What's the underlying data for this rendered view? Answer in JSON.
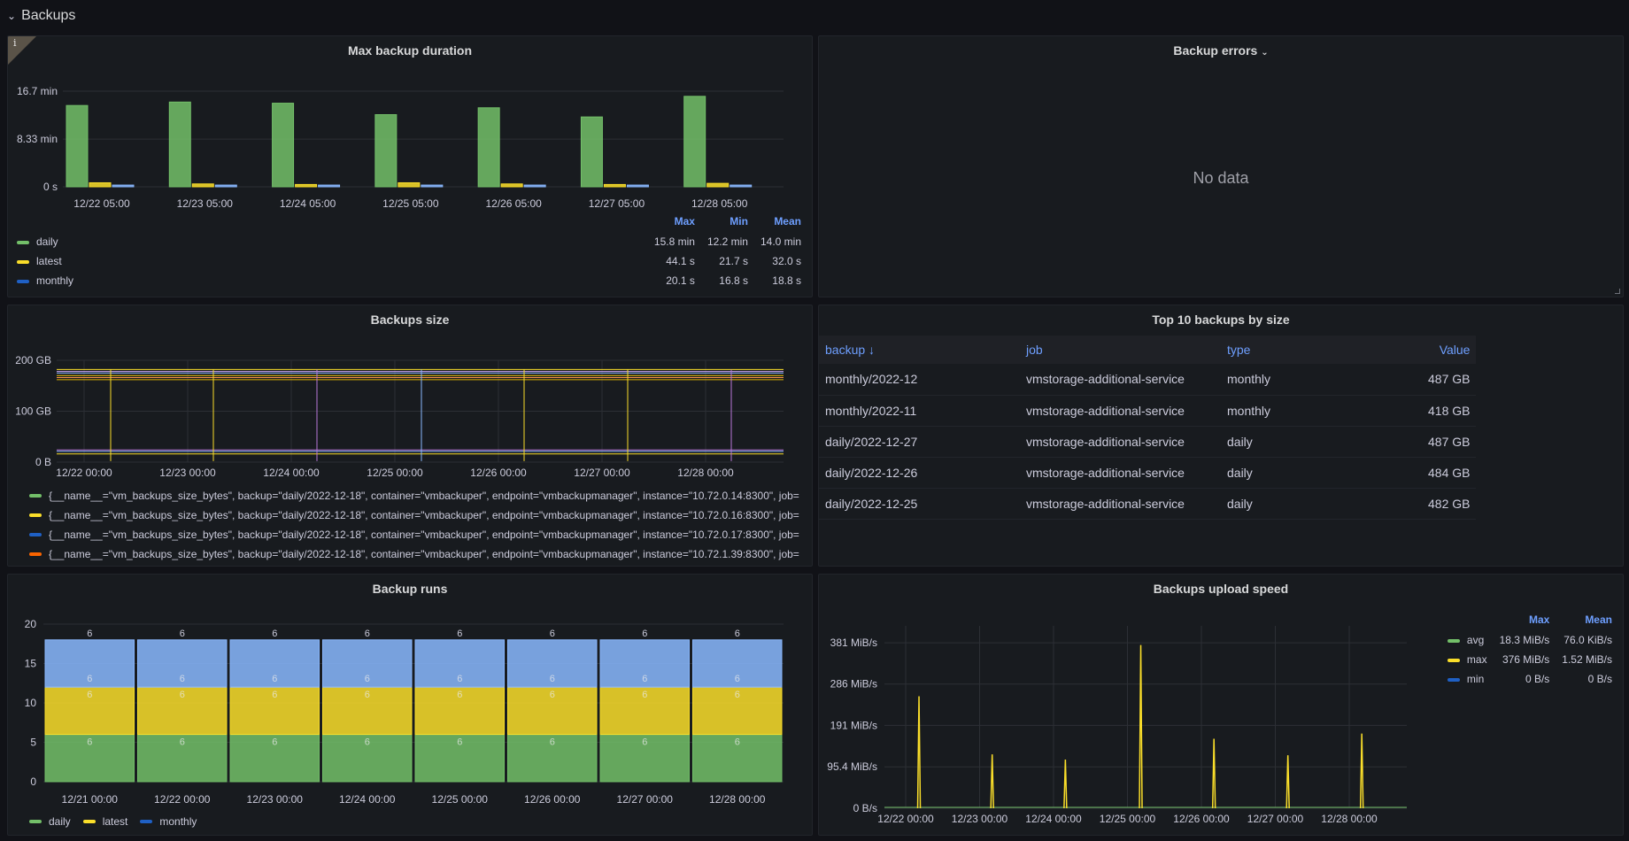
{
  "row": {
    "title": "Backups"
  },
  "panels": {
    "duration": {
      "title": "Max backup duration",
      "legend_headers": [
        "Max",
        "Min",
        "Mean"
      ],
      "legend": [
        {
          "name": "daily",
          "color": "#73bf69",
          "max": "15.8 min",
          "min": "12.2 min",
          "mean": "14.0 min"
        },
        {
          "name": "latest",
          "color": "#fade2a",
          "max": "44.1 s",
          "min": "21.7 s",
          "mean": "32.0 s"
        },
        {
          "name": "monthly",
          "color": "#1f60c4",
          "max": "20.1 s",
          "min": "16.8 s",
          "mean": "18.8 s"
        }
      ]
    },
    "errors": {
      "title": "Backup errors",
      "no_data": "No data"
    },
    "size": {
      "title": "Backups size",
      "legend": [
        {
          "color": "#73bf69",
          "label": "{__name__=\"vm_backups_size_bytes\", backup=\"daily/2022-12-18\", container=\"vmbackuper\", endpoint=\"vmbackupmanager\", instance=\"10.72.0.14:8300\", job="
        },
        {
          "color": "#fade2a",
          "label": "{__name__=\"vm_backups_size_bytes\", backup=\"daily/2022-12-18\", container=\"vmbackuper\", endpoint=\"vmbackupmanager\", instance=\"10.72.0.16:8300\", job="
        },
        {
          "color": "#1f60c4",
          "label": "{__name__=\"vm_backups_size_bytes\", backup=\"daily/2022-12-18\", container=\"vmbackuper\", endpoint=\"vmbackupmanager\", instance=\"10.72.0.17:8300\", job="
        },
        {
          "color": "#fa6400",
          "label": "{__name__=\"vm_backups_size_bytes\", backup=\"daily/2022-12-18\", container=\"vmbackuper\", endpoint=\"vmbackupmanager\", instance=\"10.72.1.39:8300\", job="
        }
      ]
    },
    "top10": {
      "title": "Top 10 backups by size",
      "columns": [
        "backup ↓",
        "job",
        "type",
        "Value"
      ],
      "rows": [
        [
          "monthly/2022-12",
          "vmstorage-additional-service",
          "monthly",
          "487 GB"
        ],
        [
          "monthly/2022-11",
          "vmstorage-additional-service",
          "monthly",
          "418 GB"
        ],
        [
          "daily/2022-12-27",
          "vmstorage-additional-service",
          "daily",
          "487 GB"
        ],
        [
          "daily/2022-12-26",
          "vmstorage-additional-service",
          "daily",
          "484 GB"
        ],
        [
          "daily/2022-12-25",
          "vmstorage-additional-service",
          "daily",
          "482 GB"
        ]
      ]
    },
    "runs": {
      "title": "Backup runs",
      "legend": [
        {
          "name": "daily",
          "color": "#73bf69"
        },
        {
          "name": "latest",
          "color": "#fade2a"
        },
        {
          "name": "monthly",
          "color": "#1f60c4"
        }
      ]
    },
    "speed": {
      "title": "Backups upload speed",
      "legend_headers": [
        "Max",
        "Mean"
      ],
      "legend": [
        {
          "name": "avg",
          "color": "#73bf69",
          "max": "18.3 MiB/s",
          "mean": "76.0 KiB/s"
        },
        {
          "name": "max",
          "color": "#fade2a",
          "max": "376 MiB/s",
          "mean": "1.52 MiB/s"
        },
        {
          "name": "min",
          "color": "#1f60c4",
          "max": "0 B/s",
          "mean": "0 B/s"
        }
      ]
    }
  },
  "chart_data": [
    {
      "id": "duration",
      "type": "bar",
      "categories": [
        "12/22 05:00",
        "12/23 05:00",
        "12/24 05:00",
        "12/25 05:00",
        "12/26 05:00",
        "12/27 05:00",
        "12/28 05:00"
      ],
      "yticks": [
        "0 s",
        "8.33 min",
        "16.7 min"
      ],
      "ytick_values": [
        0,
        8.33,
        16.7
      ],
      "ylim": [
        0,
        16.7
      ],
      "unit": "min",
      "series": [
        {
          "name": "daily",
          "color": "#73bf69",
          "values": [
            14.2,
            14.8,
            14.6,
            12.6,
            13.8,
            12.2,
            15.8
          ]
        },
        {
          "name": "latest",
          "color": "#fade2a",
          "values": [
            0.7,
            0.5,
            0.4,
            0.7,
            0.5,
            0.4,
            0.6
          ]
        },
        {
          "name": "monthly",
          "color": "#8ab8ff",
          "values": [
            0.3,
            0.3,
            0.3,
            0.3,
            0.3,
            0.3,
            0.3
          ]
        }
      ]
    },
    {
      "id": "size",
      "type": "line",
      "x_ticks": [
        "12/22 00:00",
        "12/23 00:00",
        "12/24 00:00",
        "12/25 00:00",
        "12/26 00:00",
        "12/27 00:00",
        "12/28 00:00"
      ],
      "yticks": [
        "0 B",
        "100 GB",
        "200 GB"
      ],
      "ytick_values": [
        0,
        100,
        200
      ],
      "ylim": [
        0,
        200
      ]
    },
    {
      "id": "runs",
      "type": "bar",
      "stacked": true,
      "categories": [
        "12/21 00:00",
        "12/22 00:00",
        "12/23 00:00",
        "12/24 00:00",
        "12/25 00:00",
        "12/26 00:00",
        "12/27 00:00",
        "12/28 00:00"
      ],
      "yticks": [
        "0",
        "5",
        "10",
        "15",
        "20"
      ],
      "ytick_values": [
        0,
        5,
        10,
        15,
        20
      ],
      "ylim": [
        0,
        20
      ],
      "series": [
        {
          "name": "daily",
          "color": "#73bf69",
          "values": [
            6,
            6,
            6,
            6,
            6,
            6,
            6,
            6
          ]
        },
        {
          "name": "latest",
          "color": "#fade2a",
          "values": [
            6,
            6,
            6,
            6,
            6,
            6,
            6,
            6
          ]
        },
        {
          "name": "monthly",
          "color": "#8ab8ff",
          "values": [
            6,
            6,
            6,
            6,
            6,
            6,
            6,
            6
          ]
        }
      ]
    },
    {
      "id": "speed",
      "type": "line",
      "x_ticks": [
        "12/22 00:00",
        "12/23 00:00",
        "12/24 00:00",
        "12/25 00:00",
        "12/26 00:00",
        "12/27 00:00",
        "12/28 00:00"
      ],
      "yticks": [
        "0 B/s",
        "95.4 MiB/s",
        "191 MiB/s",
        "286 MiB/s",
        "381 MiB/s"
      ],
      "ytick_values": [
        0,
        95.4,
        191,
        286,
        381
      ],
      "ylim": [
        0,
        420
      ],
      "spikes": [
        {
          "day": 0.18,
          "value": 258
        },
        {
          "day": 1.17,
          "value": 124
        },
        {
          "day": 2.16,
          "value": 112
        },
        {
          "day": 3.18,
          "value": 376
        },
        {
          "day": 4.17,
          "value": 160
        },
        {
          "day": 5.17,
          "value": 122
        },
        {
          "day": 6.17,
          "value": 172
        }
      ]
    }
  ]
}
